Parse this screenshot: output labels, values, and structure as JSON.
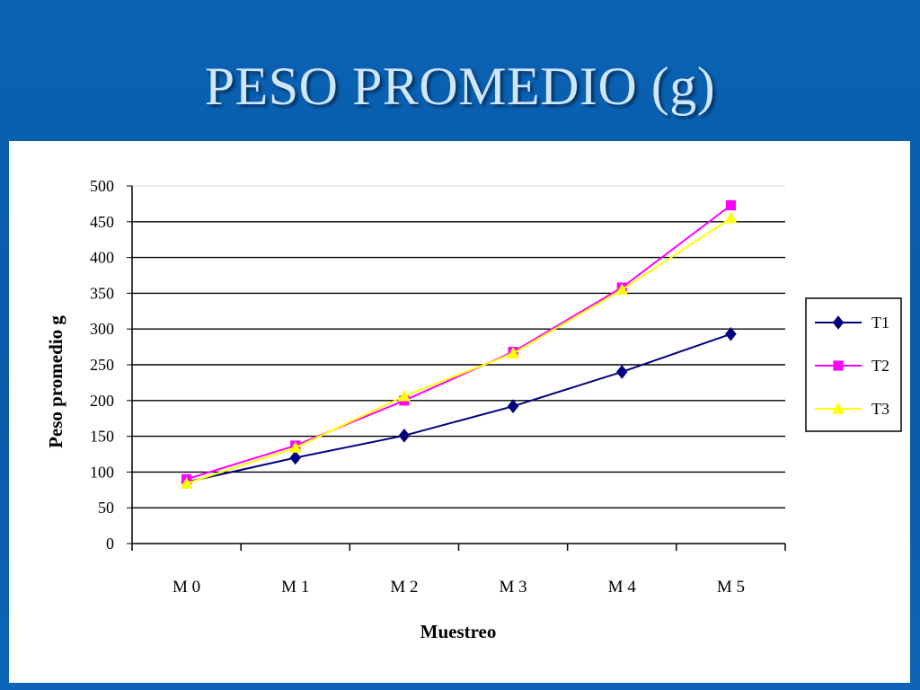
{
  "slide": {
    "title": "PESO PROMEDIO (g)",
    "background_color": "#0b5fb0",
    "title_color": "#cfe6ff"
  },
  "chart_data": {
    "type": "line",
    "xlabel": "Muestreo",
    "ylabel": "Peso promedio g",
    "categories": [
      "M 0",
      "M 1",
      "M 2",
      "M 3",
      "M 4",
      "M 5"
    ],
    "ylim": [
      0,
      500
    ],
    "yticks": [
      0,
      50,
      100,
      150,
      200,
      250,
      300,
      350,
      400,
      450,
      500
    ],
    "grid": true,
    "legend_position": "right",
    "series": [
      {
        "name": "T1",
        "values": [
          86,
          120,
          151,
          192,
          240,
          293
        ],
        "color": "#000080",
        "marker": "diamond"
      },
      {
        "name": "T2",
        "values": [
          90,
          137,
          200,
          268,
          358,
          473
        ],
        "color": "#ff00ff",
        "marker": "square"
      },
      {
        "name": "T3",
        "values": [
          84,
          134,
          206,
          266,
          355,
          455
        ],
        "color": "#ffff00",
        "marker": "triangle"
      }
    ]
  }
}
